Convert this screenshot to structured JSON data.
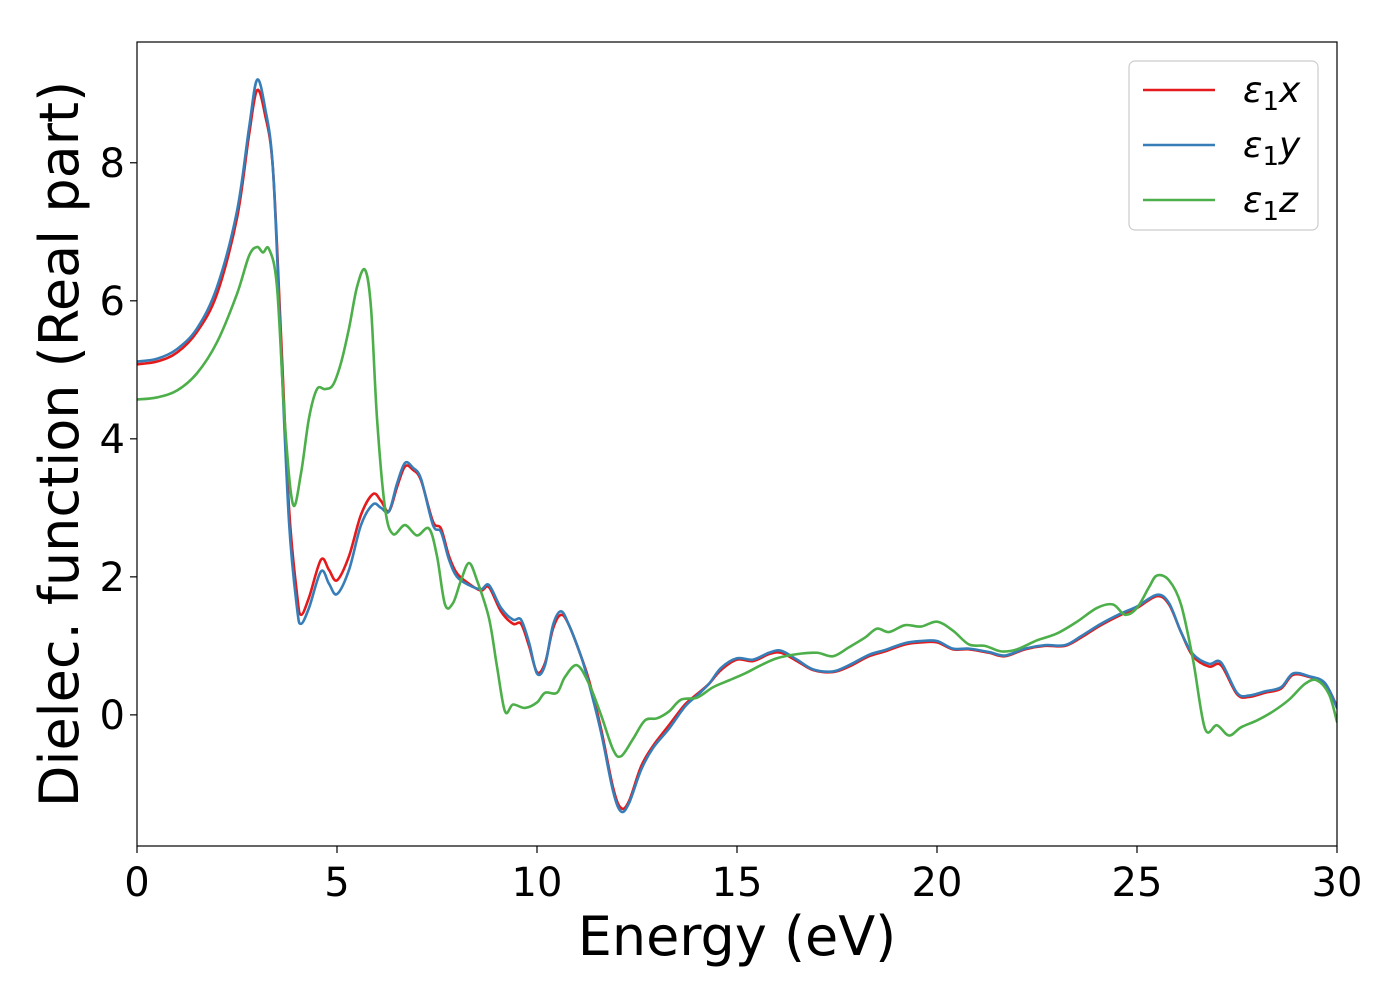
{
  "chart_data": {
    "type": "line",
    "title": "",
    "xlabel": "Energy (eV)",
    "ylabel": "Dielec. function (Real part)",
    "xlim": [
      0,
      30
    ],
    "ylim": [
      -1.9,
      9.75
    ],
    "xticks": [
      0,
      5,
      10,
      15,
      20,
      25,
      30
    ],
    "yticks": [
      0,
      2,
      4,
      6,
      8
    ],
    "grid": false,
    "legend_position": "top-right",
    "series": [
      {
        "name": "ε1x",
        "legend_main": "ε",
        "legend_sub": "1",
        "legend_tail": "x",
        "color": "#e41a1c",
        "points": [
          [
            0,
            5.08
          ],
          [
            0.5,
            5.12
          ],
          [
            1.0,
            5.25
          ],
          [
            1.5,
            5.55
          ],
          [
            2.0,
            6.1
          ],
          [
            2.5,
            7.2
          ],
          [
            2.8,
            8.4
          ],
          [
            3.0,
            9.05
          ],
          [
            3.2,
            8.7
          ],
          [
            3.4,
            7.9
          ],
          [
            3.6,
            5.5
          ],
          [
            3.8,
            3.0
          ],
          [
            4.0,
            1.75
          ],
          [
            4.1,
            1.45
          ],
          [
            4.3,
            1.7
          ],
          [
            4.6,
            2.25
          ],
          [
            4.8,
            2.1
          ],
          [
            5.0,
            1.95
          ],
          [
            5.3,
            2.3
          ],
          [
            5.6,
            2.9
          ],
          [
            5.9,
            3.2
          ],
          [
            6.1,
            3.1
          ],
          [
            6.3,
            2.95
          ],
          [
            6.5,
            3.3
          ],
          [
            6.7,
            3.6
          ],
          [
            6.9,
            3.55
          ],
          [
            7.1,
            3.4
          ],
          [
            7.4,
            2.8
          ],
          [
            7.6,
            2.7
          ],
          [
            7.8,
            2.3
          ],
          [
            8.0,
            2.05
          ],
          [
            8.3,
            1.9
          ],
          [
            8.6,
            1.8
          ],
          [
            8.8,
            1.85
          ],
          [
            9.1,
            1.5
          ],
          [
            9.4,
            1.32
          ],
          [
            9.6,
            1.32
          ],
          [
            9.8,
            1.0
          ],
          [
            10.0,
            0.62
          ],
          [
            10.2,
            0.75
          ],
          [
            10.4,
            1.25
          ],
          [
            10.6,
            1.45
          ],
          [
            10.8,
            1.3
          ],
          [
            11.1,
            0.85
          ],
          [
            11.3,
            0.5
          ],
          [
            11.6,
            -0.2
          ],
          [
            11.9,
            -1.05
          ],
          [
            12.1,
            -1.35
          ],
          [
            12.3,
            -1.25
          ],
          [
            12.6,
            -0.75
          ],
          [
            12.9,
            -0.45
          ],
          [
            13.3,
            -0.15
          ],
          [
            13.7,
            0.15
          ],
          [
            14.0,
            0.3
          ],
          [
            14.3,
            0.45
          ],
          [
            14.6,
            0.65
          ],
          [
            15.0,
            0.8
          ],
          [
            15.4,
            0.78
          ],
          [
            15.8,
            0.88
          ],
          [
            16.1,
            0.9
          ],
          [
            16.5,
            0.78
          ],
          [
            16.9,
            0.65
          ],
          [
            17.4,
            0.62
          ],
          [
            17.8,
            0.7
          ],
          [
            18.3,
            0.85
          ],
          [
            18.7,
            0.92
          ],
          [
            19.2,
            1.02
          ],
          [
            19.6,
            1.05
          ],
          [
            20.0,
            1.05
          ],
          [
            20.4,
            0.95
          ],
          [
            20.8,
            0.95
          ],
          [
            21.3,
            0.9
          ],
          [
            21.7,
            0.85
          ],
          [
            22.2,
            0.95
          ],
          [
            22.7,
            1.0
          ],
          [
            23.2,
            1.0
          ],
          [
            23.6,
            1.12
          ],
          [
            24.1,
            1.3
          ],
          [
            24.6,
            1.45
          ],
          [
            25.0,
            1.55
          ],
          [
            25.5,
            1.72
          ],
          [
            25.8,
            1.6
          ],
          [
            26.1,
            1.2
          ],
          [
            26.4,
            0.85
          ],
          [
            26.8,
            0.7
          ],
          [
            27.1,
            0.72
          ],
          [
            27.5,
            0.3
          ],
          [
            27.8,
            0.26
          ],
          [
            28.2,
            0.32
          ],
          [
            28.6,
            0.38
          ],
          [
            28.9,
            0.58
          ],
          [
            29.3,
            0.55
          ],
          [
            29.7,
            0.45
          ],
          [
            30.0,
            0.12
          ]
        ]
      },
      {
        "name": "ε1y",
        "legend_main": "ε",
        "legend_sub": "1",
        "legend_tail": "y",
        "color": "#377eb8",
        "points": [
          [
            0,
            5.12
          ],
          [
            0.5,
            5.16
          ],
          [
            1.0,
            5.3
          ],
          [
            1.5,
            5.6
          ],
          [
            2.0,
            6.2
          ],
          [
            2.5,
            7.3
          ],
          [
            2.8,
            8.5
          ],
          [
            3.0,
            9.2
          ],
          [
            3.2,
            8.8
          ],
          [
            3.4,
            7.9
          ],
          [
            3.6,
            5.3
          ],
          [
            3.8,
            2.8
          ],
          [
            4.0,
            1.55
          ],
          [
            4.1,
            1.32
          ],
          [
            4.3,
            1.55
          ],
          [
            4.6,
            2.08
          ],
          [
            4.8,
            1.9
          ],
          [
            5.0,
            1.75
          ],
          [
            5.3,
            2.1
          ],
          [
            5.6,
            2.75
          ],
          [
            5.9,
            3.05
          ],
          [
            6.1,
            3.0
          ],
          [
            6.3,
            2.95
          ],
          [
            6.5,
            3.35
          ],
          [
            6.7,
            3.65
          ],
          [
            6.9,
            3.58
          ],
          [
            7.1,
            3.42
          ],
          [
            7.4,
            2.75
          ],
          [
            7.6,
            2.65
          ],
          [
            7.8,
            2.25
          ],
          [
            8.0,
            2.0
          ],
          [
            8.3,
            1.88
          ],
          [
            8.6,
            1.82
          ],
          [
            8.8,
            1.88
          ],
          [
            9.1,
            1.55
          ],
          [
            9.4,
            1.38
          ],
          [
            9.6,
            1.38
          ],
          [
            9.8,
            1.05
          ],
          [
            10.0,
            0.6
          ],
          [
            10.2,
            0.72
          ],
          [
            10.4,
            1.3
          ],
          [
            10.6,
            1.5
          ],
          [
            10.8,
            1.3
          ],
          [
            11.1,
            0.85
          ],
          [
            11.3,
            0.45
          ],
          [
            11.6,
            -0.25
          ],
          [
            11.9,
            -1.1
          ],
          [
            12.1,
            -1.4
          ],
          [
            12.3,
            -1.28
          ],
          [
            12.6,
            -0.8
          ],
          [
            12.9,
            -0.48
          ],
          [
            13.3,
            -0.2
          ],
          [
            13.7,
            0.12
          ],
          [
            14.0,
            0.28
          ],
          [
            14.3,
            0.45
          ],
          [
            14.6,
            0.68
          ],
          [
            15.0,
            0.82
          ],
          [
            15.4,
            0.8
          ],
          [
            15.8,
            0.9
          ],
          [
            16.1,
            0.93
          ],
          [
            16.5,
            0.8
          ],
          [
            16.9,
            0.66
          ],
          [
            17.4,
            0.63
          ],
          [
            17.8,
            0.72
          ],
          [
            18.3,
            0.87
          ],
          [
            18.7,
            0.94
          ],
          [
            19.2,
            1.04
          ],
          [
            19.6,
            1.07
          ],
          [
            20.0,
            1.07
          ],
          [
            20.4,
            0.96
          ],
          [
            20.8,
            0.96
          ],
          [
            21.3,
            0.91
          ],
          [
            21.7,
            0.86
          ],
          [
            22.2,
            0.96
          ],
          [
            22.7,
            1.01
          ],
          [
            23.2,
            1.01
          ],
          [
            23.6,
            1.14
          ],
          [
            24.1,
            1.32
          ],
          [
            24.6,
            1.47
          ],
          [
            25.0,
            1.57
          ],
          [
            25.5,
            1.74
          ],
          [
            25.8,
            1.62
          ],
          [
            26.1,
            1.2
          ],
          [
            26.4,
            0.88
          ],
          [
            26.8,
            0.74
          ],
          [
            27.1,
            0.76
          ],
          [
            27.5,
            0.32
          ],
          [
            27.8,
            0.28
          ],
          [
            28.2,
            0.34
          ],
          [
            28.6,
            0.4
          ],
          [
            28.9,
            0.6
          ],
          [
            29.3,
            0.56
          ],
          [
            29.7,
            0.46
          ],
          [
            30.0,
            0.1
          ]
        ]
      },
      {
        "name": "ε1z",
        "legend_main": "ε",
        "legend_sub": "1",
        "legend_tail": "z",
        "color": "#4daf4a",
        "points": [
          [
            0,
            4.57
          ],
          [
            0.5,
            4.6
          ],
          [
            1.0,
            4.7
          ],
          [
            1.5,
            4.95
          ],
          [
            2.0,
            5.4
          ],
          [
            2.5,
            6.1
          ],
          [
            2.8,
            6.65
          ],
          [
            3.0,
            6.78
          ],
          [
            3.15,
            6.7
          ],
          [
            3.3,
            6.75
          ],
          [
            3.5,
            6.2
          ],
          [
            3.7,
            4.2
          ],
          [
            3.9,
            3.05
          ],
          [
            4.1,
            3.5
          ],
          [
            4.3,
            4.3
          ],
          [
            4.5,
            4.72
          ],
          [
            4.7,
            4.72
          ],
          [
            4.9,
            4.78
          ],
          [
            5.1,
            5.1
          ],
          [
            5.3,
            5.6
          ],
          [
            5.5,
            6.2
          ],
          [
            5.7,
            6.45
          ],
          [
            5.85,
            5.9
          ],
          [
            6.0,
            4.3
          ],
          [
            6.2,
            3.0
          ],
          [
            6.4,
            2.62
          ],
          [
            6.7,
            2.75
          ],
          [
            7.0,
            2.6
          ],
          [
            7.3,
            2.7
          ],
          [
            7.5,
            2.3
          ],
          [
            7.7,
            1.6
          ],
          [
            7.9,
            1.62
          ],
          [
            8.1,
            1.95
          ],
          [
            8.3,
            2.2
          ],
          [
            8.5,
            1.95
          ],
          [
            8.8,
            1.4
          ],
          [
            9.0,
            0.7
          ],
          [
            9.2,
            0.05
          ],
          [
            9.4,
            0.15
          ],
          [
            9.7,
            0.1
          ],
          [
            10.0,
            0.18
          ],
          [
            10.2,
            0.32
          ],
          [
            10.5,
            0.32
          ],
          [
            10.7,
            0.55
          ],
          [
            11.0,
            0.72
          ],
          [
            11.3,
            0.45
          ],
          [
            11.6,
            0.0
          ],
          [
            11.9,
            -0.5
          ],
          [
            12.1,
            -0.6
          ],
          [
            12.4,
            -0.35
          ],
          [
            12.7,
            -0.08
          ],
          [
            13.0,
            -0.05
          ],
          [
            13.3,
            0.05
          ],
          [
            13.6,
            0.22
          ],
          [
            14.0,
            0.25
          ],
          [
            14.4,
            0.4
          ],
          [
            14.8,
            0.5
          ],
          [
            15.2,
            0.6
          ],
          [
            15.6,
            0.72
          ],
          [
            16.0,
            0.82
          ],
          [
            16.5,
            0.88
          ],
          [
            17.0,
            0.9
          ],
          [
            17.4,
            0.85
          ],
          [
            17.8,
            0.98
          ],
          [
            18.2,
            1.12
          ],
          [
            18.5,
            1.25
          ],
          [
            18.8,
            1.2
          ],
          [
            19.2,
            1.3
          ],
          [
            19.6,
            1.28
          ],
          [
            20.0,
            1.35
          ],
          [
            20.4,
            1.22
          ],
          [
            20.8,
            1.02
          ],
          [
            21.2,
            1.0
          ],
          [
            21.6,
            0.92
          ],
          [
            22.0,
            0.95
          ],
          [
            22.5,
            1.08
          ],
          [
            23.0,
            1.18
          ],
          [
            23.5,
            1.35
          ],
          [
            24.0,
            1.55
          ],
          [
            24.4,
            1.6
          ],
          [
            24.7,
            1.45
          ],
          [
            25.0,
            1.55
          ],
          [
            25.3,
            1.85
          ],
          [
            25.5,
            2.02
          ],
          [
            25.8,
            1.95
          ],
          [
            26.1,
            1.6
          ],
          [
            26.4,
            0.8
          ],
          [
            26.7,
            -0.2
          ],
          [
            27.0,
            -0.15
          ],
          [
            27.3,
            -0.3
          ],
          [
            27.6,
            -0.18
          ],
          [
            28.0,
            -0.08
          ],
          [
            28.4,
            0.05
          ],
          [
            28.8,
            0.22
          ],
          [
            29.2,
            0.45
          ],
          [
            29.5,
            0.5
          ],
          [
            29.8,
            0.3
          ],
          [
            30.0,
            -0.1
          ]
        ]
      }
    ]
  }
}
